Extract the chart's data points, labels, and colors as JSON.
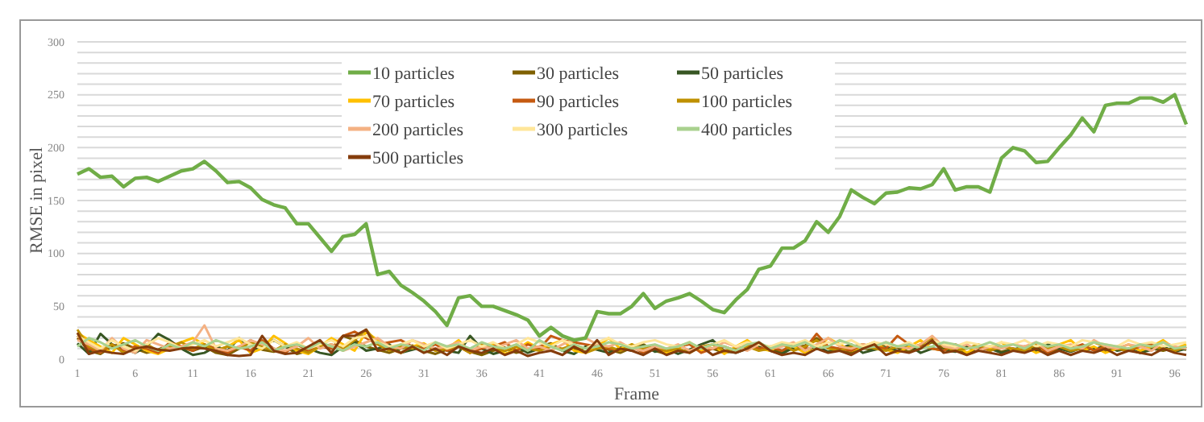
{
  "chart_data": {
    "type": "line",
    "xlabel": "Frame",
    "ylabel": "RMSE in pixel",
    "x": [
      1,
      2,
      3,
      4,
      5,
      6,
      7,
      8,
      9,
      10,
      11,
      12,
      13,
      14,
      15,
      16,
      17,
      18,
      19,
      20,
      21,
      22,
      23,
      24,
      25,
      26,
      27,
      28,
      29,
      30,
      31,
      32,
      33,
      34,
      35,
      36,
      37,
      38,
      39,
      40,
      41,
      42,
      43,
      44,
      45,
      46,
      47,
      48,
      49,
      50,
      51,
      52,
      53,
      54,
      55,
      56,
      57,
      58,
      59,
      60,
      61,
      62,
      63,
      64,
      65,
      66,
      67,
      68,
      69,
      70,
      71,
      72,
      73,
      74,
      75,
      76,
      77,
      78,
      79,
      80,
      81,
      82,
      83,
      84,
      85,
      86,
      87,
      88,
      89,
      90,
      91,
      92,
      93,
      94,
      95,
      96,
      97
    ],
    "xlim": [
      1,
      97
    ],
    "xticks": [
      1,
      6,
      11,
      16,
      21,
      26,
      31,
      36,
      41,
      46,
      51,
      56,
      61,
      66,
      71,
      76,
      81,
      86,
      91,
      96
    ],
    "ylim": [
      0,
      300
    ],
    "yticks": [
      0,
      {
        "value": 10,
        "label": null
      },
      {
        "value": 20,
        "label": null
      },
      {
        "value": 30,
        "label": null
      },
      {
        "value": 40,
        "label": null
      },
      50,
      {
        "value": 60,
        "label": null
      },
      {
        "value": 70,
        "label": null
      },
      {
        "value": 80,
        "label": null
      },
      {
        "value": 90,
        "label": null
      },
      100,
      {
        "value": 110,
        "label": null
      },
      {
        "value": 120,
        "label": null
      },
      {
        "value": 130,
        "label": null
      },
      {
        "value": 140,
        "label": null
      },
      150,
      {
        "value": 160,
        "label": null
      },
      {
        "value": 170,
        "label": null
      },
      {
        "value": 180,
        "label": null
      },
      {
        "value": 190,
        "label": null
      },
      200,
      {
        "value": 210,
        "label": null
      },
      {
        "value": 220,
        "label": null
      },
      {
        "value": 230,
        "label": null
      },
      {
        "value": 240,
        "label": null
      },
      250,
      {
        "value": 260,
        "label": null
      },
      {
        "value": 270,
        "label": null
      },
      {
        "value": 280,
        "label": null
      },
      {
        "value": 290,
        "label": null
      },
      300
    ],
    "grid": "y",
    "legend": "top",
    "marker": "none",
    "line_style": "solid",
    "series": [
      {
        "name": "10 particles",
        "color": "#70ad47",
        "values": [
          175,
          180,
          172,
          173,
          163,
          171,
          172,
          168,
          173,
          178,
          180,
          187,
          178,
          167,
          168,
          162,
          151,
          146,
          143,
          128,
          128,
          115,
          102,
          116,
          118,
          128,
          80,
          83,
          70,
          63,
          55,
          45,
          32,
          58,
          60,
          50,
          50,
          46,
          42,
          37,
          22,
          30,
          22,
          18,
          20,
          45,
          43,
          43,
          50,
          62,
          48,
          55,
          58,
          62,
          55,
          47,
          44,
          56,
          66,
          85,
          88,
          105,
          105,
          112,
          130,
          120,
          135,
          160,
          153,
          147,
          157,
          158,
          162,
          161,
          165,
          180,
          160,
          163,
          163,
          158,
          190,
          200,
          197,
          186,
          187,
          200,
          212,
          228,
          215,
          240,
          242,
          242,
          247,
          247,
          243,
          250,
          222
        ]
      },
      {
        "name": "30 particles",
        "color": "#7f6000",
        "values": [
          20,
          8,
          5,
          12,
          15,
          10,
          6,
          9,
          14,
          11,
          8,
          12,
          6,
          4,
          10,
          18,
          9,
          7,
          12,
          5,
          8,
          14,
          10,
          22,
          18,
          12,
          9,
          6,
          10,
          13,
          8,
          5,
          9,
          12,
          7,
          4,
          8,
          11,
          6,
          9,
          12,
          15,
          8,
          10,
          7,
          12,
          9,
          6,
          11,
          14,
          8,
          5,
          9,
          7,
          12,
          10,
          6,
          8,
          11,
          15,
          9,
          7,
          10,
          13,
          20,
          12,
          8,
          6,
          10,
          9,
          14,
          11,
          7,
          12,
          16,
          10,
          8,
          6,
          9,
          12,
          7,
          10,
          8,
          11,
          6,
          9,
          13,
          8,
          10,
          7,
          12,
          9,
          6,
          10,
          8,
          11,
          9
        ]
      },
      {
        "name": "50 particles",
        "color": "#375623",
        "values": [
          15,
          5,
          24,
          14,
          10,
          6,
          12,
          24,
          18,
          10,
          4,
          6,
          12,
          8,
          20,
          6,
          14,
          18,
          12,
          8,
          10,
          6,
          4,
          12,
          16,
          8,
          10,
          14,
          6,
          9,
          12,
          15,
          8,
          6,
          22,
          10,
          5,
          8,
          12,
          6,
          10,
          14,
          8,
          5,
          12,
          9,
          6,
          11,
          8,
          13,
          7,
          10,
          5,
          9,
          14,
          18,
          8,
          6,
          10,
          12,
          8,
          5,
          11,
          9,
          12,
          7,
          10,
          14,
          6,
          9,
          11,
          8,
          13,
          6,
          10,
          9,
          7,
          12,
          8,
          10,
          6,
          9,
          12,
          8,
          14,
          10,
          7,
          11,
          9,
          13,
          8,
          10,
          6,
          9,
          12,
          7,
          10
        ]
      },
      {
        "name": "70 particles",
        "color": "#ffc000",
        "values": [
          25,
          18,
          12,
          6,
          20,
          14,
          8,
          5,
          10,
          16,
          20,
          14,
          8,
          12,
          18,
          6,
          10,
          22,
          15,
          8,
          5,
          12,
          20,
          14,
          8,
          26,
          18,
          10,
          6,
          12,
          15,
          8,
          10,
          18,
          6,
          12,
          14,
          5,
          9,
          16,
          10,
          14,
          18,
          8,
          6,
          12,
          20,
          10,
          14,
          8,
          12,
          6,
          10,
          16,
          8,
          14,
          5,
          12,
          18,
          10,
          8,
          14,
          12,
          6,
          10,
          20,
          14,
          8,
          12,
          16,
          9,
          6,
          12,
          18,
          10,
          8,
          14,
          6,
          12,
          10,
          16,
          8,
          12,
          6,
          10,
          14,
          18,
          8,
          12,
          6,
          10,
          14,
          8,
          12,
          18,
          10,
          14
        ]
      },
      {
        "name": "90 particles",
        "color": "#c55a11",
        "values": [
          22,
          10,
          6,
          14,
          8,
          12,
          10,
          6,
          16,
          12,
          8,
          14,
          10,
          6,
          12,
          8,
          18,
          10,
          6,
          14,
          8,
          12,
          10,
          22,
          26,
          20,
          14,
          16,
          18,
          12,
          10,
          14,
          8,
          12,
          6,
          10,
          12,
          16,
          8,
          14,
          10,
          22,
          18,
          16,
          14,
          12,
          10,
          8,
          12,
          6,
          10,
          8,
          12,
          14,
          6,
          10,
          12,
          8,
          14,
          10,
          12,
          8,
          14,
          10,
          24,
          12,
          10,
          8,
          14,
          12,
          10,
          22,
          14,
          12,
          10,
          8,
          14,
          10,
          12,
          8,
          12,
          10,
          8,
          14,
          6,
          12,
          10,
          14,
          8,
          12,
          10,
          8,
          12,
          14,
          10,
          8,
          12
        ]
      },
      {
        "name": "100 particles",
        "color": "#bf9000",
        "values": [
          28,
          12,
          8,
          14,
          6,
          10,
          14,
          8,
          12,
          16,
          10,
          14,
          8,
          12,
          10,
          16,
          12,
          8,
          14,
          10,
          6,
          12,
          14,
          10,
          18,
          28,
          14,
          8,
          12,
          10,
          14,
          8,
          10,
          12,
          6,
          14,
          10,
          8,
          12,
          10,
          8,
          12,
          10,
          14,
          6,
          10,
          12,
          8,
          14,
          10,
          12,
          8,
          10,
          6,
          12,
          14,
          8,
          10,
          12,
          8,
          10,
          14,
          8,
          12,
          18,
          10,
          8,
          12,
          14,
          10,
          8,
          12,
          10,
          14,
          20,
          12,
          8,
          10,
          14,
          8,
          12,
          10,
          8,
          14,
          10,
          12,
          8,
          10,
          16,
          12,
          10,
          8,
          14,
          12,
          10,
          8,
          12
        ]
      },
      {
        "name": "200 particles",
        "color": "#f4b183",
        "values": [
          18,
          14,
          8,
          20,
          10,
          6,
          18,
          14,
          10,
          12,
          16,
          32,
          10,
          8,
          12,
          18,
          14,
          10,
          8,
          12,
          20,
          10,
          14,
          8,
          12,
          16,
          20,
          12,
          10,
          18,
          14,
          10,
          12,
          16,
          8,
          12,
          10,
          14,
          18,
          10,
          12,
          8,
          14,
          18,
          20,
          14,
          12,
          16,
          10,
          8,
          12,
          10,
          14,
          8,
          12,
          10,
          16,
          12,
          8,
          14,
          10,
          12,
          16,
          8,
          14,
          20,
          12,
          10,
          14,
          12,
          16,
          12,
          10,
          14,
          22,
          12,
          10,
          14,
          8,
          12,
          10,
          14,
          12,
          16,
          8,
          12,
          14,
          10,
          18,
          12,
          10,
          14,
          12,
          8,
          16,
          12,
          10
        ]
      },
      {
        "name": "300 particles",
        "color": "#ffe699",
        "values": [
          22,
          16,
          10,
          18,
          12,
          8,
          14,
          20,
          16,
          10,
          14,
          18,
          12,
          16,
          20,
          14,
          10,
          18,
          12,
          16,
          10,
          14,
          18,
          12,
          20,
          22,
          16,
          12,
          14,
          18,
          12,
          16,
          10,
          14,
          18,
          12,
          16,
          10,
          14,
          20,
          16,
          12,
          18,
          14,
          10,
          16,
          20,
          14,
          12,
          16,
          18,
          14,
          12,
          16,
          10,
          14,
          18,
          12,
          16,
          14,
          12,
          16,
          14,
          18,
          12,
          16,
          14,
          18,
          12,
          16,
          14,
          12,
          16,
          10,
          18,
          14,
          12,
          16,
          14,
          12,
          16,
          14,
          18,
          12,
          16,
          14,
          12,
          18,
          16,
          14,
          12,
          18,
          14,
          16,
          12,
          14,
          16
        ]
      },
      {
        "name": "400 particles",
        "color": "#a9d18e",
        "values": [
          12,
          20,
          16,
          10,
          14,
          18,
          12,
          8,
          14,
          10,
          16,
          12,
          18,
          14,
          10,
          12,
          16,
          8,
          12,
          14,
          10,
          16,
          12,
          8,
          14,
          12,
          16,
          10,
          14,
          12,
          8,
          16,
          12,
          14,
          10,
          16,
          12,
          10,
          14,
          8,
          18,
          12,
          8,
          14,
          10,
          12,
          16,
          14,
          10,
          12,
          14,
          10,
          12,
          16,
          10,
          14,
          12,
          8,
          14,
          16,
          10,
          14,
          12,
          16,
          10,
          12,
          18,
          14,
          10,
          12,
          16,
          12,
          14,
          10,
          12,
          16,
          14,
          10,
          12,
          16,
          12,
          14,
          10,
          16,
          12,
          14,
          10,
          12,
          16,
          14,
          12,
          10,
          14,
          12,
          16,
          10,
          12
        ]
      },
      {
        "name": "500 particles",
        "color": "#843c0c",
        "values": [
          25,
          5,
          8,
          6,
          5,
          10,
          12,
          9,
          8,
          10,
          11,
          10,
          8,
          4,
          3,
          4,
          22,
          8,
          5,
          6,
          12,
          18,
          6,
          22,
          22,
          28,
          8,
          10,
          6,
          12,
          6,
          10,
          4,
          12,
          8,
          6,
          10,
          4,
          8,
          3,
          6,
          8,
          4,
          12,
          6,
          18,
          4,
          10,
          8,
          4,
          10,
          4,
          8,
          6,
          12,
          4,
          8,
          6,
          10,
          16,
          8,
          4,
          6,
          4,
          10,
          6,
          8,
          4,
          10,
          14,
          4,
          8,
          6,
          10,
          18,
          6,
          8,
          4,
          8,
          6,
          4,
          8,
          6,
          10,
          4,
          8,
          4,
          8,
          6,
          10,
          4,
          8,
          6,
          4,
          10,
          6,
          4
        ]
      }
    ]
  }
}
